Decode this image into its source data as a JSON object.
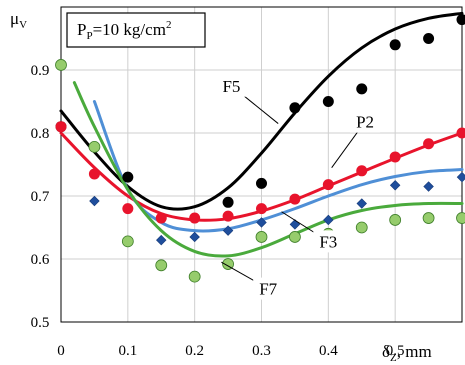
{
  "chart_data": {
    "type": "scatter",
    "annotation": "P_P=10 kg/cm²",
    "annotation_parts": {
      "main": "P",
      "sub": "P",
      "value": "=10 kg/cm",
      "sup": "2"
    },
    "ylabel": {
      "main": "μ",
      "sub": "V"
    },
    "xlabel": {
      "main": "δ",
      "sub": "Z",
      "unit": ", mm"
    },
    "xlim": [
      0,
      0.6
    ],
    "ylim": [
      0.5,
      1.0
    ],
    "xticks": [
      "0",
      "0.1",
      "0.2",
      "0.3",
      "0.4",
      "0.5"
    ],
    "yticks": [
      "0.5",
      "0.6",
      "0.7",
      "0.8",
      "0.9"
    ],
    "grid": true,
    "series": [
      {
        "name": "F5",
        "color": "#000000",
        "marker": "circle",
        "points": [
          [
            0.0,
            0.81
          ],
          [
            0.1,
            0.73
          ],
          [
            0.25,
            0.69
          ],
          [
            0.3,
            0.72
          ],
          [
            0.35,
            0.84
          ],
          [
            0.4,
            0.85
          ],
          [
            0.45,
            0.87
          ],
          [
            0.5,
            0.94
          ],
          [
            0.55,
            0.95
          ],
          [
            0.6,
            0.98
          ]
        ],
        "curve": [
          [
            0.0,
            0.835
          ],
          [
            0.05,
            0.77
          ],
          [
            0.1,
            0.715
          ],
          [
            0.15,
            0.683
          ],
          [
            0.2,
            0.683
          ],
          [
            0.25,
            0.713
          ],
          [
            0.3,
            0.768
          ],
          [
            0.35,
            0.832
          ],
          [
            0.4,
            0.89
          ],
          [
            0.45,
            0.935
          ],
          [
            0.5,
            0.965
          ],
          [
            0.55,
            0.982
          ],
          [
            0.6,
            0.99
          ]
        ]
      },
      {
        "name": "P2",
        "color": "#e8142c",
        "marker": "circle",
        "points": [
          [
            0.0,
            0.81
          ],
          [
            0.05,
            0.735
          ],
          [
            0.1,
            0.68
          ],
          [
            0.15,
            0.665
          ],
          [
            0.2,
            0.665
          ],
          [
            0.25,
            0.668
          ],
          [
            0.3,
            0.68
          ],
          [
            0.35,
            0.695
          ],
          [
            0.4,
            0.718
          ],
          [
            0.45,
            0.74
          ],
          [
            0.5,
            0.762
          ],
          [
            0.55,
            0.783
          ],
          [
            0.6,
            0.8
          ]
        ],
        "curve": [
          [
            0.0,
            0.8
          ],
          [
            0.05,
            0.745
          ],
          [
            0.1,
            0.7
          ],
          [
            0.15,
            0.672
          ],
          [
            0.2,
            0.662
          ],
          [
            0.25,
            0.664
          ],
          [
            0.3,
            0.676
          ],
          [
            0.35,
            0.694
          ],
          [
            0.4,
            0.716
          ],
          [
            0.45,
            0.738
          ],
          [
            0.5,
            0.76
          ],
          [
            0.55,
            0.781
          ],
          [
            0.6,
            0.8
          ]
        ]
      },
      {
        "name": "F3",
        "color": "#1f4e9c",
        "curve_color": "#4f8fd6",
        "marker": "diamond",
        "points": [
          [
            0.05,
            0.692
          ],
          [
            0.15,
            0.63
          ],
          [
            0.2,
            0.635
          ],
          [
            0.25,
            0.645
          ],
          [
            0.3,
            0.658
          ],
          [
            0.35,
            0.655
          ],
          [
            0.4,
            0.662
          ],
          [
            0.45,
            0.688
          ],
          [
            0.5,
            0.717
          ],
          [
            0.55,
            0.715
          ],
          [
            0.6,
            0.73
          ]
        ],
        "curve": [
          [
            0.05,
            0.85
          ],
          [
            0.1,
            0.71
          ],
          [
            0.15,
            0.658
          ],
          [
            0.2,
            0.645
          ],
          [
            0.25,
            0.648
          ],
          [
            0.3,
            0.662
          ],
          [
            0.35,
            0.68
          ],
          [
            0.4,
            0.7
          ],
          [
            0.45,
            0.718
          ],
          [
            0.5,
            0.731
          ],
          [
            0.55,
            0.739
          ],
          [
            0.6,
            0.742
          ]
        ]
      },
      {
        "name": "F7",
        "color": "#4aaa3c",
        "marker": "circle-light",
        "points": [
          [
            0.0,
            0.908
          ],
          [
            0.05,
            0.778
          ],
          [
            0.1,
            0.628
          ],
          [
            0.15,
            0.59
          ],
          [
            0.2,
            0.572
          ],
          [
            0.25,
            0.592
          ],
          [
            0.3,
            0.635
          ],
          [
            0.35,
            0.635
          ],
          [
            0.4,
            0.64
          ],
          [
            0.45,
            0.65
          ],
          [
            0.5,
            0.662
          ],
          [
            0.55,
            0.665
          ],
          [
            0.6,
            0.665
          ]
        ],
        "curve": [
          [
            0.02,
            0.88
          ],
          [
            0.05,
            0.81
          ],
          [
            0.1,
            0.71
          ],
          [
            0.15,
            0.645
          ],
          [
            0.2,
            0.612
          ],
          [
            0.25,
            0.605
          ],
          [
            0.3,
            0.618
          ],
          [
            0.35,
            0.64
          ],
          [
            0.4,
            0.662
          ],
          [
            0.45,
            0.677
          ],
          [
            0.5,
            0.685
          ],
          [
            0.55,
            0.688
          ],
          [
            0.6,
            0.688
          ]
        ]
      }
    ],
    "labels": [
      {
        "text": "F5",
        "x": 0.255,
        "y": 0.875,
        "tx": 0.325,
        "ty": 0.815
      },
      {
        "text": "P2",
        "x": 0.455,
        "y": 0.818,
        "tx": 0.405,
        "ty": 0.745
      },
      {
        "text": "F3",
        "x": 0.4,
        "y": 0.628,
        "tx": 0.33,
        "ty": 0.675
      },
      {
        "text": "F7",
        "x": 0.31,
        "y": 0.553,
        "tx": 0.24,
        "ty": 0.595
      }
    ]
  }
}
